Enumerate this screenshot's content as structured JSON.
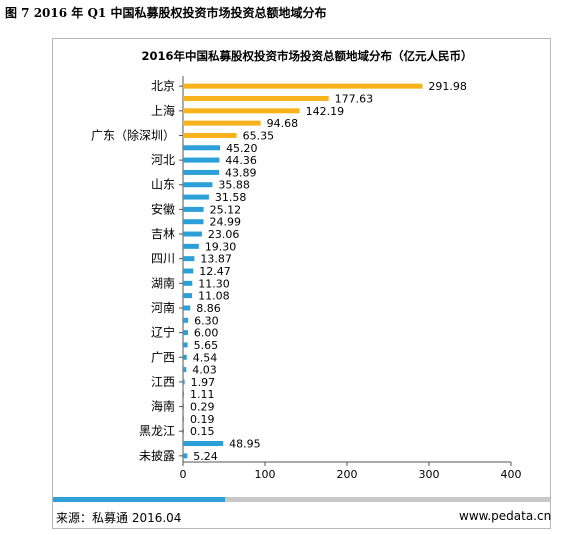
{
  "figure_caption": "图 7 2016 年 Q1 中国私募股权投资市场投资总额地域分布",
  "footer": {
    "source": "来源：私募通 2016.04",
    "website": "www.pedata.cn"
  },
  "colors": {
    "highlight": "#f7b21c",
    "normal": "#2a9fd8",
    "divider_accent": "#2f9fd6",
    "divider": "#c8c8c8"
  },
  "chart_data": {
    "type": "bar",
    "orientation": "horizontal",
    "title": "2016年中国私募股权投资市场投资总额地域分布（亿元人民币）",
    "xlabel": "",
    "ylabel": "",
    "xlim": [
      0,
      400
    ],
    "x_ticks": [
      "0",
      "100",
      "200",
      "300",
      "400"
    ],
    "grid": false,
    "categories": [
      "北京",
      "",
      "上海",
      "",
      "广东（除深圳）",
      "",
      "河北",
      "",
      "山东",
      "",
      "安徽",
      "",
      "吉林",
      "",
      "四川",
      "",
      "湖南",
      "",
      "河南",
      "",
      "辽宁",
      "",
      "广西",
      "",
      "江西",
      "",
      "海南",
      "",
      "黑龙江",
      "",
      "未披露"
    ],
    "values": [
      291.98,
      177.63,
      142.19,
      94.68,
      65.35,
      45.2,
      44.36,
      43.89,
      35.88,
      31.58,
      25.12,
      24.99,
      23.06,
      19.3,
      13.87,
      12.47,
      11.3,
      11.08,
      8.86,
      6.3,
      6.0,
      5.65,
      4.54,
      4.03,
      1.97,
      1.11,
      0.29,
      0.19,
      0.15,
      48.95,
      5.24
    ],
    "value_labels": [
      "291.98",
      "177.63",
      "142.19",
      "94.68",
      "65.35",
      "45.20",
      "44.36",
      "43.89",
      "35.88",
      "31.58",
      "25.12",
      "24.99",
      "23.06",
      "19.30",
      "13.87",
      "12.47",
      "11.30",
      "11.08",
      "8.86",
      "6.30",
      "6.00",
      "5.65",
      "4.54",
      "4.03",
      "1.97",
      "1.11",
      "0.29",
      "0.19",
      "0.15",
      "48.95",
      "5.24"
    ],
    "highlight_count": 5
  }
}
